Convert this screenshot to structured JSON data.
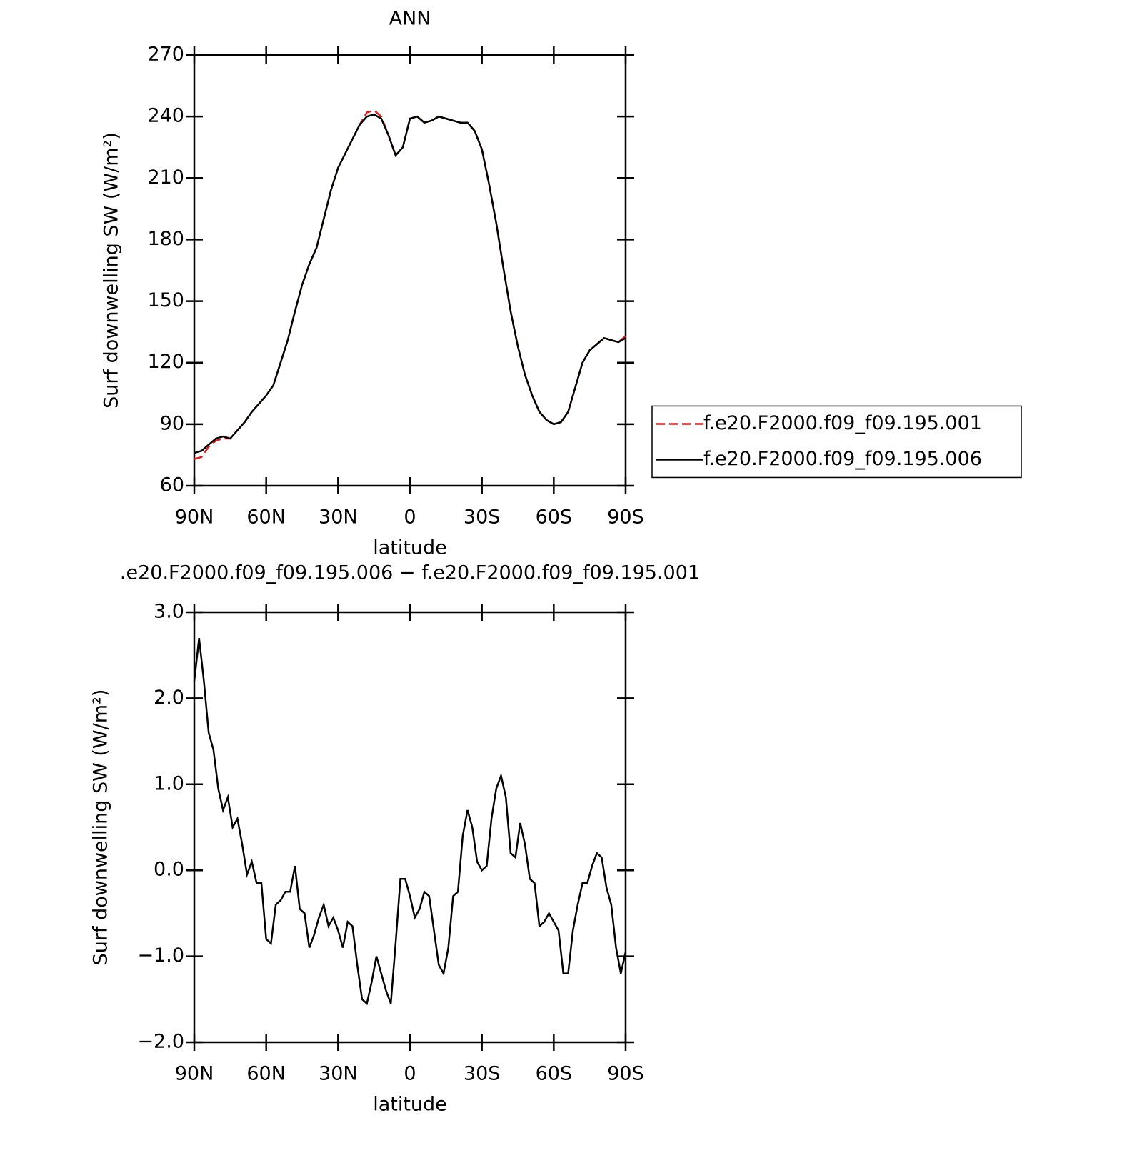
{
  "chart_data": [
    {
      "type": "line",
      "title": "ANN",
      "xlabel": "latitude",
      "ylabel": "Surf downwelling SW (W/m²)",
      "x": [
        90,
        87,
        84,
        81,
        78,
        75,
        72,
        69,
        66,
        63,
        60,
        57,
        54,
        51,
        48,
        45,
        42,
        39,
        36,
        33,
        30,
        27,
        24,
        21,
        18,
        15,
        12,
        9,
        6,
        3,
        0,
        -3,
        -6,
        -9,
        -12,
        -15,
        -18,
        -21,
        -24,
        -27,
        -30,
        -33,
        -36,
        -39,
        -42,
        -45,
        -48,
        -51,
        -54,
        -57,
        -60,
        -63,
        -66,
        -69,
        -72,
        -75,
        -78,
        -81,
        -84,
        -87,
        -90
      ],
      "series": [
        {
          "name": "f.e20.F2000.f09_f09.195.001",
          "color": "#e41a1c",
          "line_style": "dashed",
          "values": [
            73,
            74,
            79,
            82,
            83,
            83,
            87,
            91,
            96,
            100,
            104,
            109,
            120,
            131,
            145,
            158,
            168,
            176,
            190,
            204,
            215,
            222,
            229,
            236,
            242,
            243,
            240,
            231,
            221,
            225,
            239,
            240,
            237,
            238,
            240,
            239,
            238,
            237,
            237,
            233,
            224,
            207,
            188,
            166,
            145,
            128,
            114,
            104,
            96,
            92,
            90,
            91,
            96,
            108,
            120,
            126,
            129,
            132,
            131,
            130,
            133
          ]
        },
        {
          "name": "f.e20.F2000.f09_f09.195.006",
          "color": "#000000",
          "line_style": "solid",
          "values": [
            76,
            77,
            80,
            83,
            84,
            83,
            87,
            91,
            96,
            100,
            104,
            109,
            120,
            131,
            145,
            158,
            168,
            176,
            190,
            204,
            215,
            222,
            229,
            236,
            240,
            241,
            239,
            231,
            221,
            225,
            239,
            240,
            237,
            238,
            240,
            239,
            238,
            237,
            237,
            233,
            224,
            207,
            188,
            166,
            145,
            128,
            114,
            104,
            96,
            92,
            90,
            91,
            96,
            108,
            120,
            126,
            129,
            132,
            131,
            130,
            132
          ]
        }
      ],
      "xlim": [
        90,
        -90
      ],
      "xticks": [
        {
          "value": 90,
          "label": "90N"
        },
        {
          "value": 60,
          "label": "60N"
        },
        {
          "value": 30,
          "label": "30N"
        },
        0,
        {
          "value": -30,
          "label": "30S"
        },
        {
          "value": -60,
          "label": "60S"
        },
        {
          "value": -90,
          "label": "90S"
        }
      ],
      "ylim": [
        60,
        270
      ],
      "yticks": [
        60,
        90,
        120,
        150,
        180,
        210,
        240,
        270
      ],
      "legend": "right"
    },
    {
      "type": "line",
      "title": ".e20.F2000.f09_f09.195.006 − f.e20.F2000.f09_f09.195.001",
      "xlabel": "latitude",
      "ylabel": "Surf downwelling SW (W/m²)",
      "x": [
        90,
        88,
        86,
        84,
        82,
        80,
        78,
        76,
        74,
        72,
        70,
        68,
        66,
        64,
        62,
        60,
        58,
        56,
        54,
        52,
        50,
        48,
        46,
        44,
        42,
        40,
        38,
        36,
        34,
        32,
        30,
        28,
        26,
        24,
        22,
        20,
        18,
        16,
        14,
        12,
        10,
        8,
        6,
        4,
        2,
        0,
        -2,
        -4,
        -6,
        -8,
        -10,
        -12,
        -14,
        -16,
        -18,
        -20,
        -22,
        -24,
        -26,
        -28,
        -30,
        -32,
        -34,
        -36,
        -38,
        -40,
        -42,
        -44,
        -46,
        -48,
        -50,
        -52,
        -54,
        -56,
        -58,
        -60,
        -62,
        -64,
        -66,
        -68,
        -70,
        -72,
        -74,
        -76,
        -78,
        -80,
        -82,
        -84,
        -86,
        -88,
        -90
      ],
      "series": [
        {
          "color": "#000000",
          "line_style": "solid",
          "values": [
            2.2,
            2.7,
            2.2,
            1.6,
            1.4,
            0.95,
            0.7,
            0.85,
            0.5,
            0.6,
            0.3,
            -0.05,
            0.1,
            -0.15,
            -0.15,
            -0.8,
            -0.85,
            -0.4,
            -0.35,
            -0.25,
            -0.25,
            0.05,
            -0.45,
            -0.5,
            -0.9,
            -0.75,
            -0.55,
            -0.4,
            -0.65,
            -0.55,
            -0.7,
            -0.9,
            -0.6,
            -0.65,
            -1.1,
            -1.5,
            -1.55,
            -1.3,
            -1.0,
            -1.2,
            -1.4,
            -1.55,
            -0.85,
            -0.1,
            -0.1,
            -0.3,
            -0.55,
            -0.45,
            -0.25,
            -0.3,
            -0.7,
            -1.1,
            -1.2,
            -0.9,
            -0.3,
            -0.25,
            0.4,
            0.7,
            0.5,
            0.1,
            0.0,
            0.05,
            0.6,
            0.95,
            1.1,
            0.85,
            0.2,
            0.15,
            0.55,
            0.3,
            -0.1,
            -0.15,
            -0.65,
            -0.6,
            -0.5,
            -0.6,
            -0.7,
            -1.2,
            -1.2,
            -0.7,
            -0.4,
            -0.15,
            -0.15,
            0.05,
            0.2,
            0.15,
            -0.2,
            -0.4,
            -0.9,
            -1.2,
            -0.95
          ]
        }
      ],
      "xlim": [
        90,
        -90
      ],
      "xticks": [
        {
          "value": 90,
          "label": "90N"
        },
        {
          "value": 60,
          "label": "60N"
        },
        {
          "value": 30,
          "label": "30N"
        },
        0,
        {
          "value": -30,
          "label": "30S"
        },
        {
          "value": -60,
          "label": "60S"
        },
        {
          "value": -90,
          "label": "90S"
        }
      ],
      "ylim": [
        -2,
        3
      ],
      "yticks": [
        {
          "value": -2,
          "label": "−2.0"
        },
        {
          "value": -1,
          "label": "−1.0"
        },
        {
          "value": 0,
          "label": "0.0"
        },
        {
          "value": 1,
          "label": "1.0"
        },
        {
          "value": 2,
          "label": "2.0"
        },
        {
          "value": 3,
          "label": "3.0"
        }
      ]
    }
  ]
}
